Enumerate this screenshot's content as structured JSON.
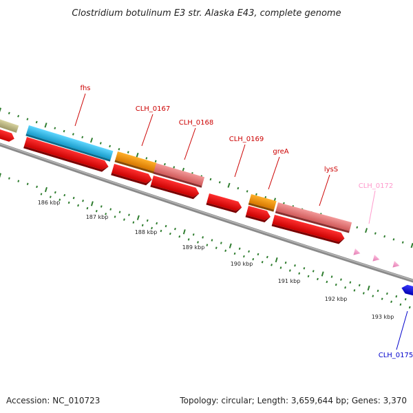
{
  "title": "Clostridium botulinum E3 str. Alaska E43, complete genome",
  "footer": {
    "accession": "Accession: NC_010723",
    "summary": "Topology: circular; Length: 3,659,644 bp; Genes: 3,370"
  },
  "colors": {
    "backbone": "#808080",
    "tick_major": "#2f7d2f",
    "tick_minor": "#2f7d2f",
    "tick_label": "#222222"
  },
  "scale_labels": [
    "186 kbp",
    "187 kbp",
    "188 kbp",
    "189 kbp",
    "190 kbp",
    "191 kbp",
    "192 kbp",
    "193 kbp"
  ],
  "gene_labels": [
    {
      "name": "fhs",
      "color": "#cc0000"
    },
    {
      "name": "CLH_0167",
      "color": "#cc0000"
    },
    {
      "name": "CLH_0168",
      "color": "#cc0000"
    },
    {
      "name": "CLH_0169",
      "color": "#cc0000"
    },
    {
      "name": "greA",
      "color": "#cc0000"
    },
    {
      "name": "lysS",
      "color": "#cc0000"
    },
    {
      "name": "CLH_0172",
      "color": "#ff99cc"
    },
    {
      "name": "CLH_0175",
      "color": "#0000cc"
    }
  ],
  "feature_colors": {
    "khaki": "#b7b27a",
    "cyan": "#33bfe8",
    "orange": "#f29000",
    "salmon": "#e87878",
    "red": "#e51010",
    "pink": "#f4a0c8",
    "blue": "#1a1ae0"
  }
}
